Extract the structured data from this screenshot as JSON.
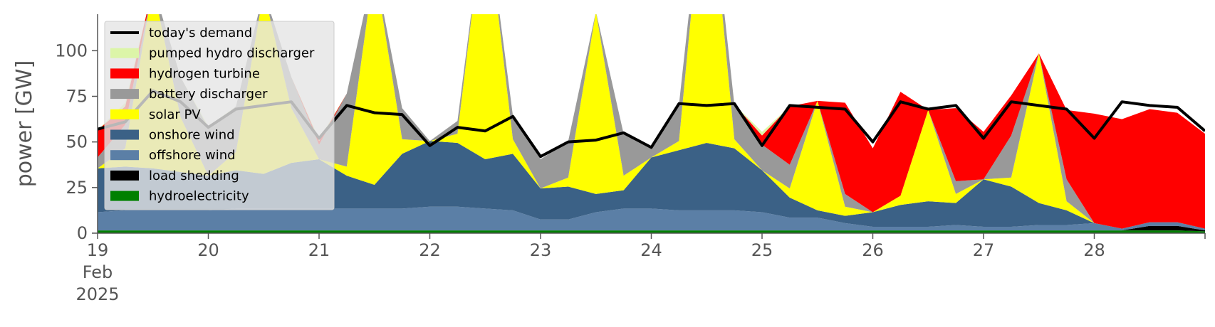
{
  "chart_data": {
    "type": "area",
    "title": "",
    "xlabel": "",
    "ylabel": "power [GW]",
    "ylim": [
      0,
      120
    ],
    "yticks": [
      0,
      25,
      50,
      75,
      100
    ],
    "xlim": [
      19,
      29
    ],
    "xticks": [
      {
        "value": 19,
        "label": "19",
        "sublabels": [
          "Feb",
          "2025"
        ]
      },
      {
        "value": 20,
        "label": "20"
      },
      {
        "value": 21,
        "label": "21"
      },
      {
        "value": 22,
        "label": "22"
      },
      {
        "value": 23,
        "label": "23"
      },
      {
        "value": 24,
        "label": "24"
      },
      {
        "value": 25,
        "label": "25"
      },
      {
        "value": 26,
        "label": "26"
      },
      {
        "value": 27,
        "label": "27"
      },
      {
        "value": 28,
        "label": "28"
      }
    ],
    "grid": false,
    "legend_position": "upper-left",
    "x": [
      19.0,
      19.25,
      19.5,
      19.75,
      20.0,
      20.25,
      20.5,
      20.75,
      21.0,
      21.25,
      21.5,
      21.75,
      22.0,
      22.25,
      22.5,
      22.75,
      23.0,
      23.25,
      23.5,
      23.75,
      24.0,
      24.25,
      24.5,
      24.75,
      25.0,
      25.25,
      25.5,
      25.75,
      26.0,
      26.25,
      26.5,
      26.75,
      27.0,
      27.25,
      27.5,
      27.75,
      28.0,
      28.25,
      28.5,
      28.75,
      29.0
    ],
    "stack_order": [
      "hydroelectricity",
      "load shedding",
      "offshore wind",
      "onshore wind",
      "solar PV",
      "battery discharger",
      "hydrogen turbine",
      "pumped hydro discharger"
    ],
    "series": [
      {
        "name": "hydroelectricity",
        "color": "#008000",
        "values": [
          1.5,
          1.5,
          1.5,
          1.5,
          1.5,
          1.5,
          1.5,
          1.5,
          1.5,
          1.5,
          1.5,
          1.5,
          1.5,
          1.5,
          1.5,
          1.5,
          1.5,
          1.5,
          1.5,
          1.5,
          1.5,
          1.5,
          1.5,
          1.5,
          1.5,
          1.5,
          1.5,
          1.5,
          1.5,
          1.5,
          1.5,
          1.5,
          1.5,
          1.5,
          1.5,
          1.5,
          1.5,
          1.5,
          1.5,
          1.5,
          1.0
        ]
      },
      {
        "name": "load shedding",
        "color": "#000000",
        "values": [
          0,
          0,
          0,
          0,
          0,
          0,
          0,
          0,
          0,
          0,
          0,
          0,
          0,
          0,
          0,
          0,
          0,
          0,
          0,
          0,
          0,
          0,
          0,
          0,
          0,
          0,
          0,
          0,
          0,
          0,
          0,
          0,
          0,
          0,
          0,
          0,
          0,
          0,
          2.5,
          2.5,
          0.5
        ]
      },
      {
        "name": "offshore wind",
        "color": "#5b7fa6",
        "values": [
          10,
          11,
          11,
          11,
          11,
          12,
          12,
          12,
          12,
          12,
          12,
          12,
          13,
          13,
          12,
          11,
          6,
          6,
          10,
          12,
          12,
          11,
          11,
          11,
          10,
          7,
          7,
          4,
          2,
          2,
          2,
          3,
          2,
          2,
          3,
          3,
          4,
          1,
          2,
          2,
          1
        ]
      },
      {
        "name": "onshore wind",
        "color": "#3b6186",
        "values": [
          24,
          24,
          23,
          21,
          19,
          21,
          19,
          25,
          27,
          18,
          13,
          30,
          36,
          35,
          27,
          31,
          17,
          18,
          10,
          10,
          28,
          33,
          37,
          34,
          23,
          11,
          4,
          4,
          8,
          12,
          14,
          12,
          26,
          22,
          12,
          8,
          0,
          0,
          0,
          0,
          0
        ]
      },
      {
        "name": "solar PV",
        "color": "#ffff00",
        "values": [
          0,
          10,
          100,
          30,
          0,
          10,
          100,
          30,
          0,
          5,
          120,
          8,
          0,
          5,
          140,
          8,
          0,
          5,
          100,
          8,
          0,
          5,
          160,
          5,
          0,
          5,
          60,
          5,
          0,
          5,
          50,
          5,
          0,
          5,
          82,
          5,
          0,
          0,
          0,
          0,
          0
        ]
      },
      {
        "name": "battery discharger",
        "color": "#999999",
        "values": [
          6,
          13,
          0,
          22,
          26,
          25,
          0,
          17,
          8,
          40,
          0,
          17,
          0,
          7,
          0,
          13,
          16,
          20,
          0,
          23,
          5,
          20,
          0,
          19,
          14,
          13,
          0,
          7,
          0,
          0,
          0,
          7,
          0,
          23,
          0,
          12,
          0,
          0,
          0,
          0,
          0
        ]
      },
      {
        "name": "hydrogen turbine",
        "color": "#ff0000",
        "values": [
          15,
          10,
          0,
          0,
          0,
          0,
          0,
          0,
          2,
          0,
          0,
          0,
          0,
          0,
          0,
          0,
          0,
          0,
          0,
          0,
          0,
          0,
          0,
          0,
          5,
          32,
          0,
          50,
          35,
          57,
          0,
          40,
          26,
          22,
          0,
          38,
          60,
          60,
          62,
          60,
          52
        ]
      },
      {
        "name": "pumped hydro discharger",
        "color": "#dcf5a8",
        "values": [
          0,
          2,
          0,
          0,
          1,
          0,
          0,
          0,
          1,
          0,
          0,
          0,
          0,
          0,
          0,
          0,
          0,
          0,
          0,
          0,
          0,
          0,
          0,
          0,
          2,
          0,
          0,
          0,
          0,
          0,
          0,
          0,
          0,
          0,
          0,
          0,
          0,
          0,
          0,
          0,
          0
        ]
      }
    ],
    "demand": {
      "name": "today's demand",
      "color": "#000000",
      "values": [
        57,
        61,
        78,
        72,
        58,
        68,
        70,
        72,
        52,
        70,
        66,
        65,
        48,
        58,
        56,
        64,
        42,
        50,
        51,
        55,
        47,
        71,
        70,
        71,
        48,
        70,
        69,
        68,
        50,
        72,
        68,
        70,
        52,
        72,
        70,
        68,
        52,
        72,
        70,
        69,
        56
      ]
    },
    "legend": [
      {
        "label": "today's demand",
        "color": "#000000",
        "kind": "line"
      },
      {
        "label": "pumped hydro discharger",
        "color": "#dcf5a8",
        "kind": "patch"
      },
      {
        "label": "hydrogen turbine",
        "color": "#ff0000",
        "kind": "patch"
      },
      {
        "label": "battery discharger",
        "color": "#999999",
        "kind": "patch"
      },
      {
        "label": "solar PV",
        "color": "#ffff00",
        "kind": "patch"
      },
      {
        "label": "onshore wind",
        "color": "#3b6186",
        "kind": "patch"
      },
      {
        "label": "offshore wind",
        "color": "#5b7fa6",
        "kind": "patch"
      },
      {
        "label": "load shedding",
        "color": "#000000",
        "kind": "patch"
      },
      {
        "label": "hydroelectricity",
        "color": "#008000",
        "kind": "patch"
      }
    ]
  }
}
